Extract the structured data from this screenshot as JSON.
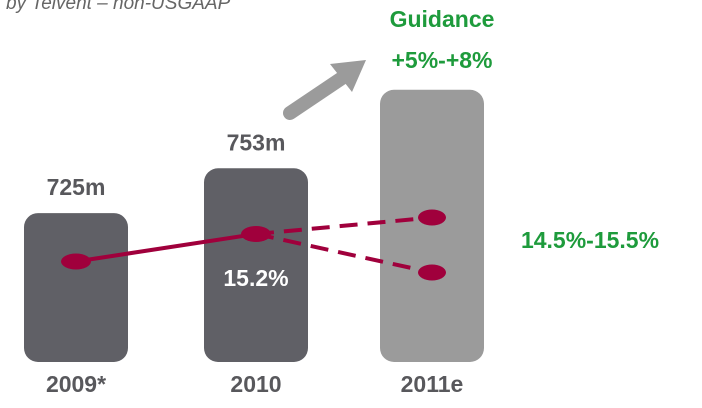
{
  "chart_data": {
    "type": "bar",
    "subtitle": "by Telvent – non-USGAAP",
    "categories": [
      "2009*",
      "2010",
      "2011e"
    ],
    "series": [
      {
        "colors": [
          "#606066",
          "#606066",
          "#9b9b9b"
        ],
        "values": [
          725,
          753,
          802
        ],
        "value_labels": [
          "725m",
          "753m",
          null
        ]
      },
      {
        "type": "line",
        "axis": "y2",
        "color": "#a0003c",
        "values": [
          14.7,
          15.2,
          null
        ],
        "value_labels": [
          null,
          "15.2%",
          null
        ]
      }
    ],
    "margin_range": {
      "category": "2011e",
      "high": 15.5,
      "low": 14.5,
      "label": "14.5%-15.5%",
      "color": "#1e9b3c"
    },
    "guidance": {
      "title": "Guidance",
      "label": "+5%-+8%",
      "color": "#1e9b3c"
    },
    "ylim": [
      632,
      805
    ],
    "y2lim": [
      14,
      16
    ]
  }
}
